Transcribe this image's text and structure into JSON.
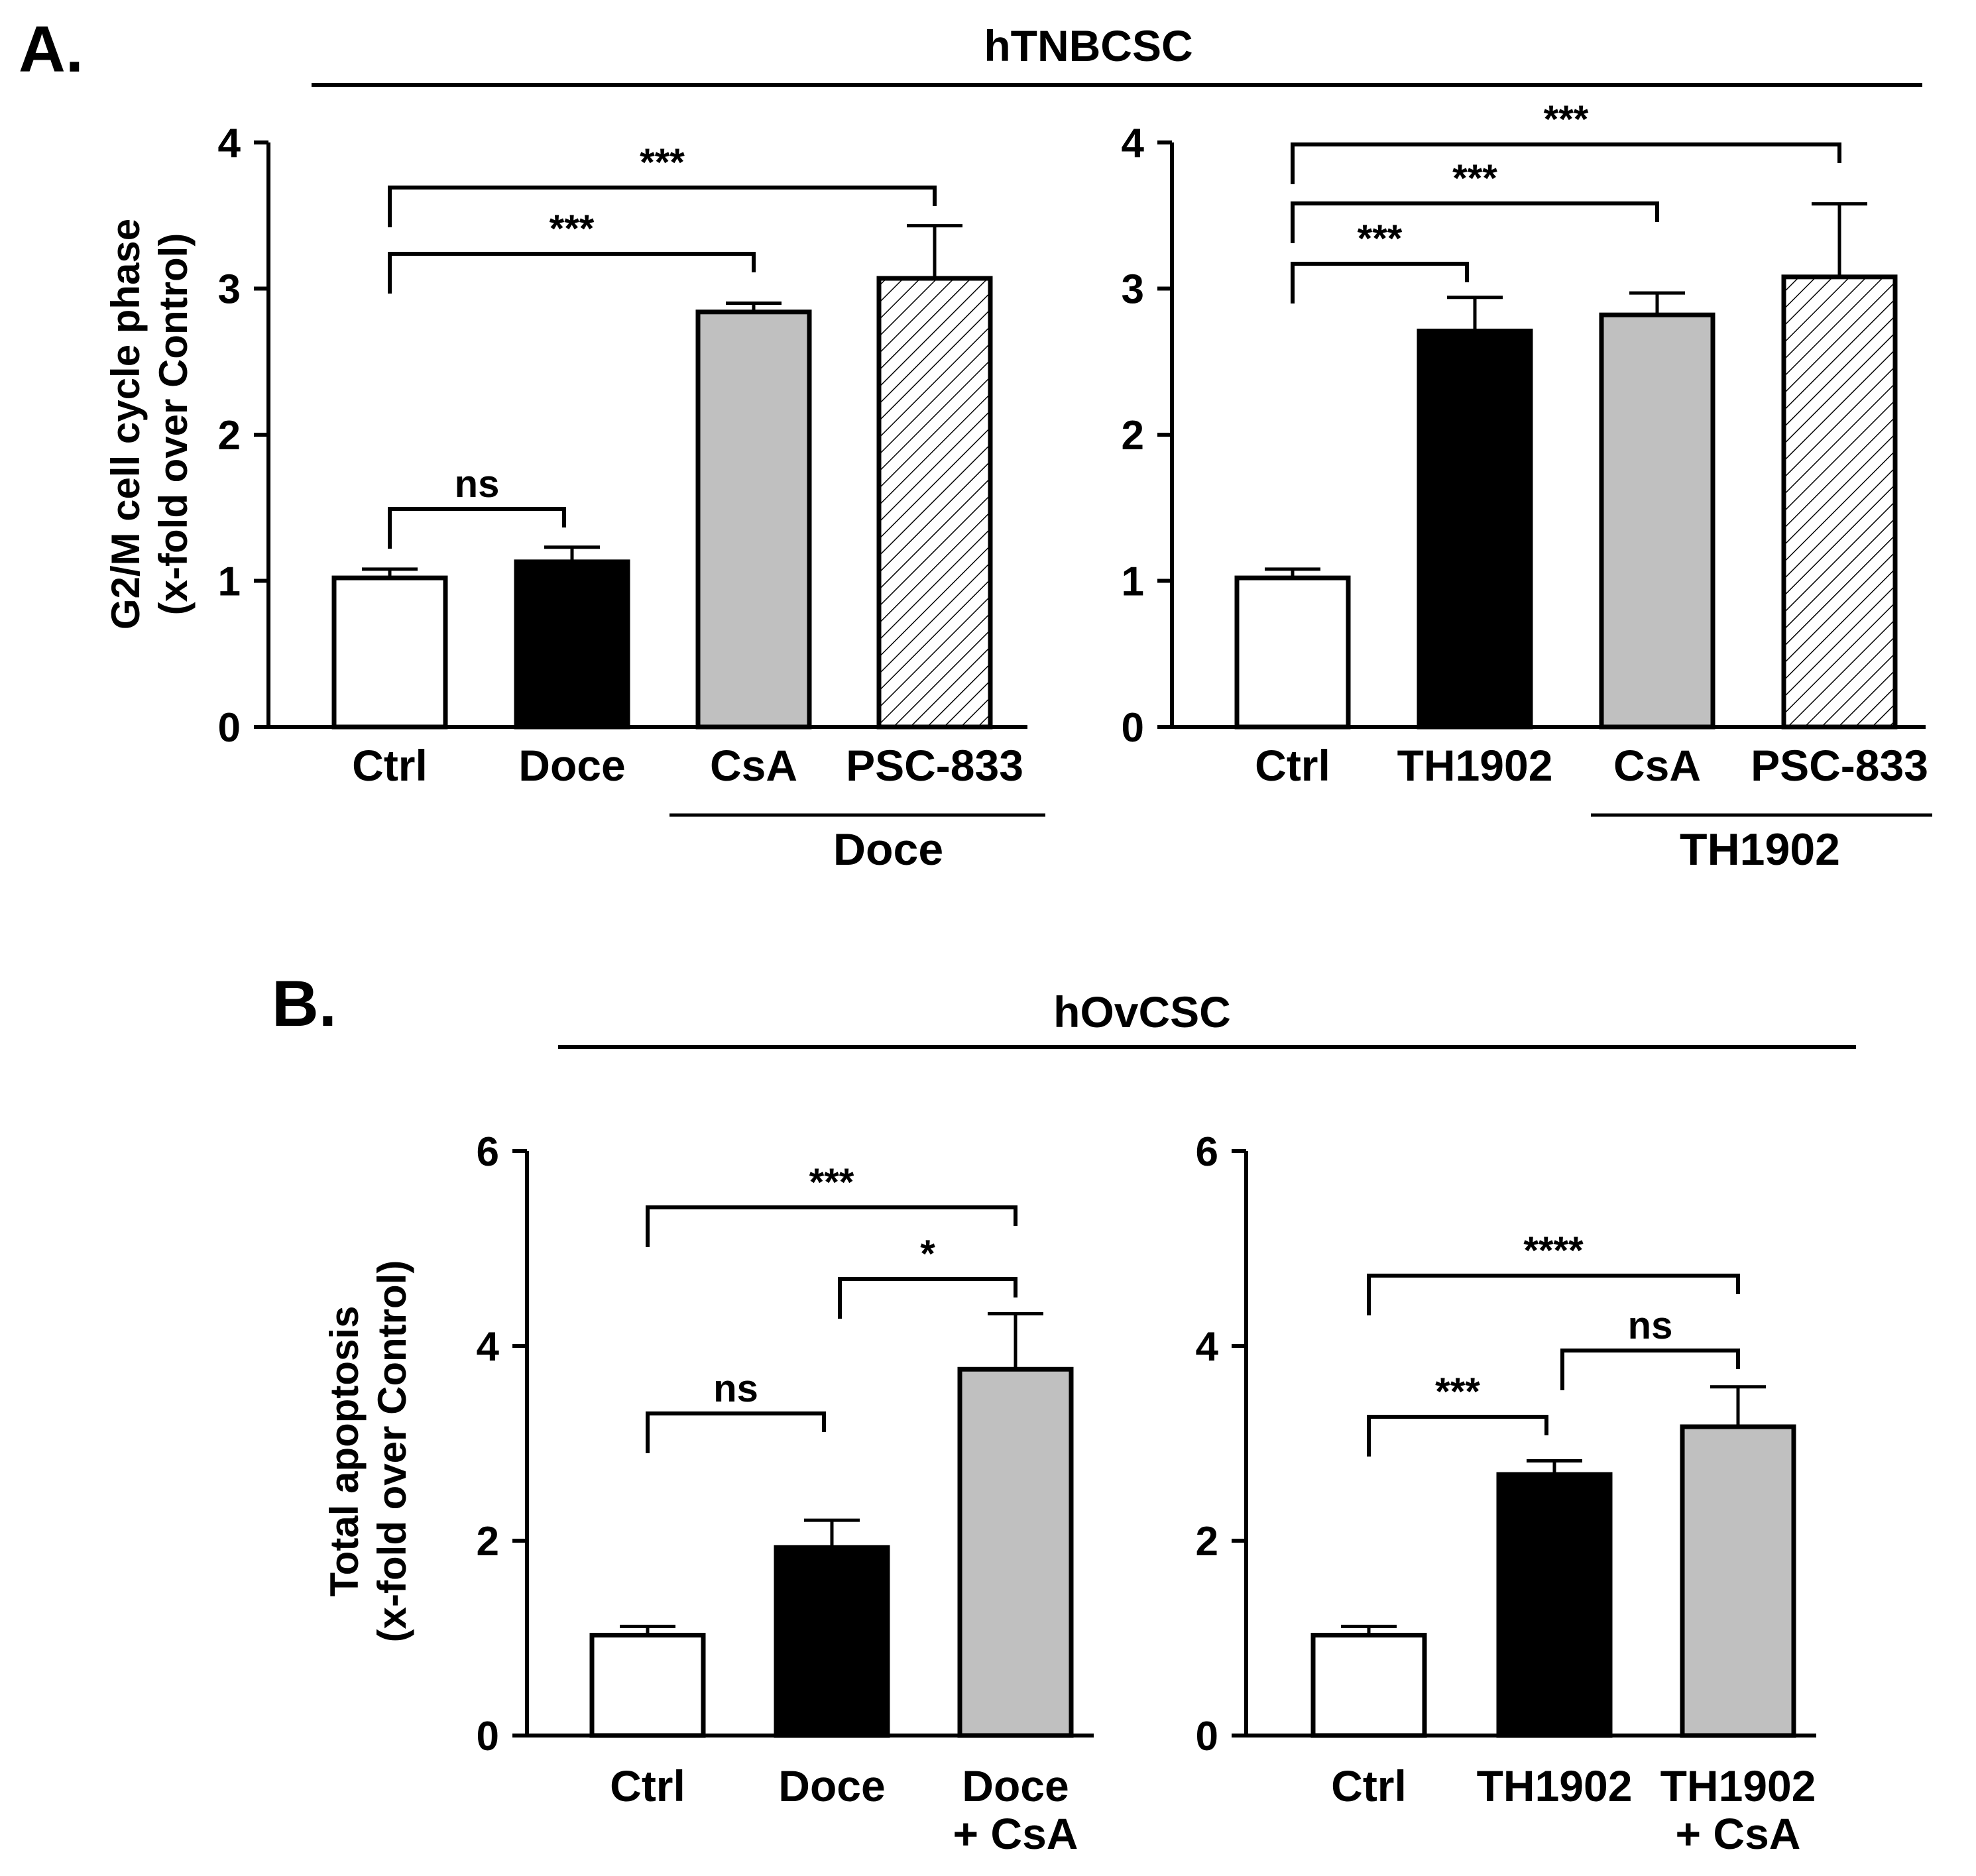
{
  "panel_A": {
    "label": "A.",
    "group_title": "hTNBCSC",
    "ylabel_line1": "G2/M cell cycle phase",
    "ylabel_line2": "(x-fold  over Control)",
    "sub_label_left": "Doce",
    "sub_label_right": "TH1902"
  },
  "panel_B": {
    "label": "B.",
    "group_title": "hOvCSC",
    "ylabel_line1": "Total apoptosis",
    "ylabel_line2": "(x-fold over Control)"
  },
  "colors": {
    "white": "#ffffff",
    "black": "#000000",
    "gray": "#c0c0c0",
    "hatch": "#ffffff"
  },
  "chart_data": [
    {
      "id": "A-left",
      "type": "bar",
      "title": "hTNBCSC",
      "ylabel": "G2/M cell cycle phase (x-fold over Control)",
      "ylim": [
        0,
        4
      ],
      "yticks": [
        0,
        1,
        2,
        3,
        4
      ],
      "categories": [
        "Ctrl",
        "Doce",
        "CsA",
        "PSC-833"
      ],
      "group_label": "Doce",
      "values": [
        1.02,
        1.13,
        2.84,
        3.07
      ],
      "errors": [
        0.06,
        0.1,
        0.06,
        0.36
      ],
      "fills": [
        "white",
        "black",
        "gray",
        "hatch"
      ],
      "comparisons": [
        {
          "from": 0,
          "to": 1,
          "label": "ns"
        },
        {
          "from": 0,
          "to": 2,
          "label": "***"
        },
        {
          "from": 0,
          "to": 3,
          "label": "***"
        }
      ]
    },
    {
      "id": "A-right",
      "type": "bar",
      "title": "hTNBCSC",
      "ylim": [
        0,
        4
      ],
      "yticks": [
        0,
        1,
        2,
        3,
        4
      ],
      "categories": [
        "Ctrl",
        "TH1902",
        "CsA",
        "PSC-833"
      ],
      "group_label": "TH1902",
      "values": [
        1.02,
        2.71,
        2.82,
        3.08
      ],
      "errors": [
        0.06,
        0.23,
        0.15,
        0.5
      ],
      "fills": [
        "white",
        "black",
        "gray",
        "hatch"
      ],
      "comparisons": [
        {
          "from": 0,
          "to": 1,
          "label": "***"
        },
        {
          "from": 0,
          "to": 2,
          "label": "***"
        },
        {
          "from": 0,
          "to": 3,
          "label": "***"
        }
      ]
    },
    {
      "id": "B-left",
      "type": "bar",
      "title": "hOvCSC",
      "ylabel": "Total apoptosis (x-fold over Control)",
      "ylim": [
        0,
        6
      ],
      "yticks": [
        0,
        2,
        4,
        6
      ],
      "categories": [
        [
          "Ctrl"
        ],
        [
          "Doce"
        ],
        [
          "Doce",
          "+ CsA"
        ]
      ],
      "values": [
        1.03,
        1.93,
        3.76
      ],
      "errors": [
        0.09,
        0.28,
        0.57
      ],
      "fills": [
        "white",
        "black",
        "gray"
      ],
      "comparisons": [
        {
          "from": 0,
          "to": 1,
          "label": "ns"
        },
        {
          "from": 1,
          "to": 2,
          "label": "*"
        },
        {
          "from": 0,
          "to": 2,
          "label": "***"
        }
      ]
    },
    {
      "id": "B-right",
      "type": "bar",
      "title": "hOvCSC",
      "ylim": [
        0,
        6
      ],
      "yticks": [
        0,
        2,
        4,
        6
      ],
      "categories": [
        [
          "Ctrl"
        ],
        [
          "TH1902"
        ],
        [
          "TH1902",
          "+ CsA"
        ]
      ],
      "values": [
        1.03,
        2.68,
        3.17
      ],
      "errors": [
        0.09,
        0.14,
        0.41
      ],
      "fills": [
        "white",
        "black",
        "gray"
      ],
      "comparisons": [
        {
          "from": 0,
          "to": 1,
          "label": "***"
        },
        {
          "from": 1,
          "to": 2,
          "label": "ns"
        },
        {
          "from": 0,
          "to": 2,
          "label": "****"
        }
      ]
    }
  ]
}
